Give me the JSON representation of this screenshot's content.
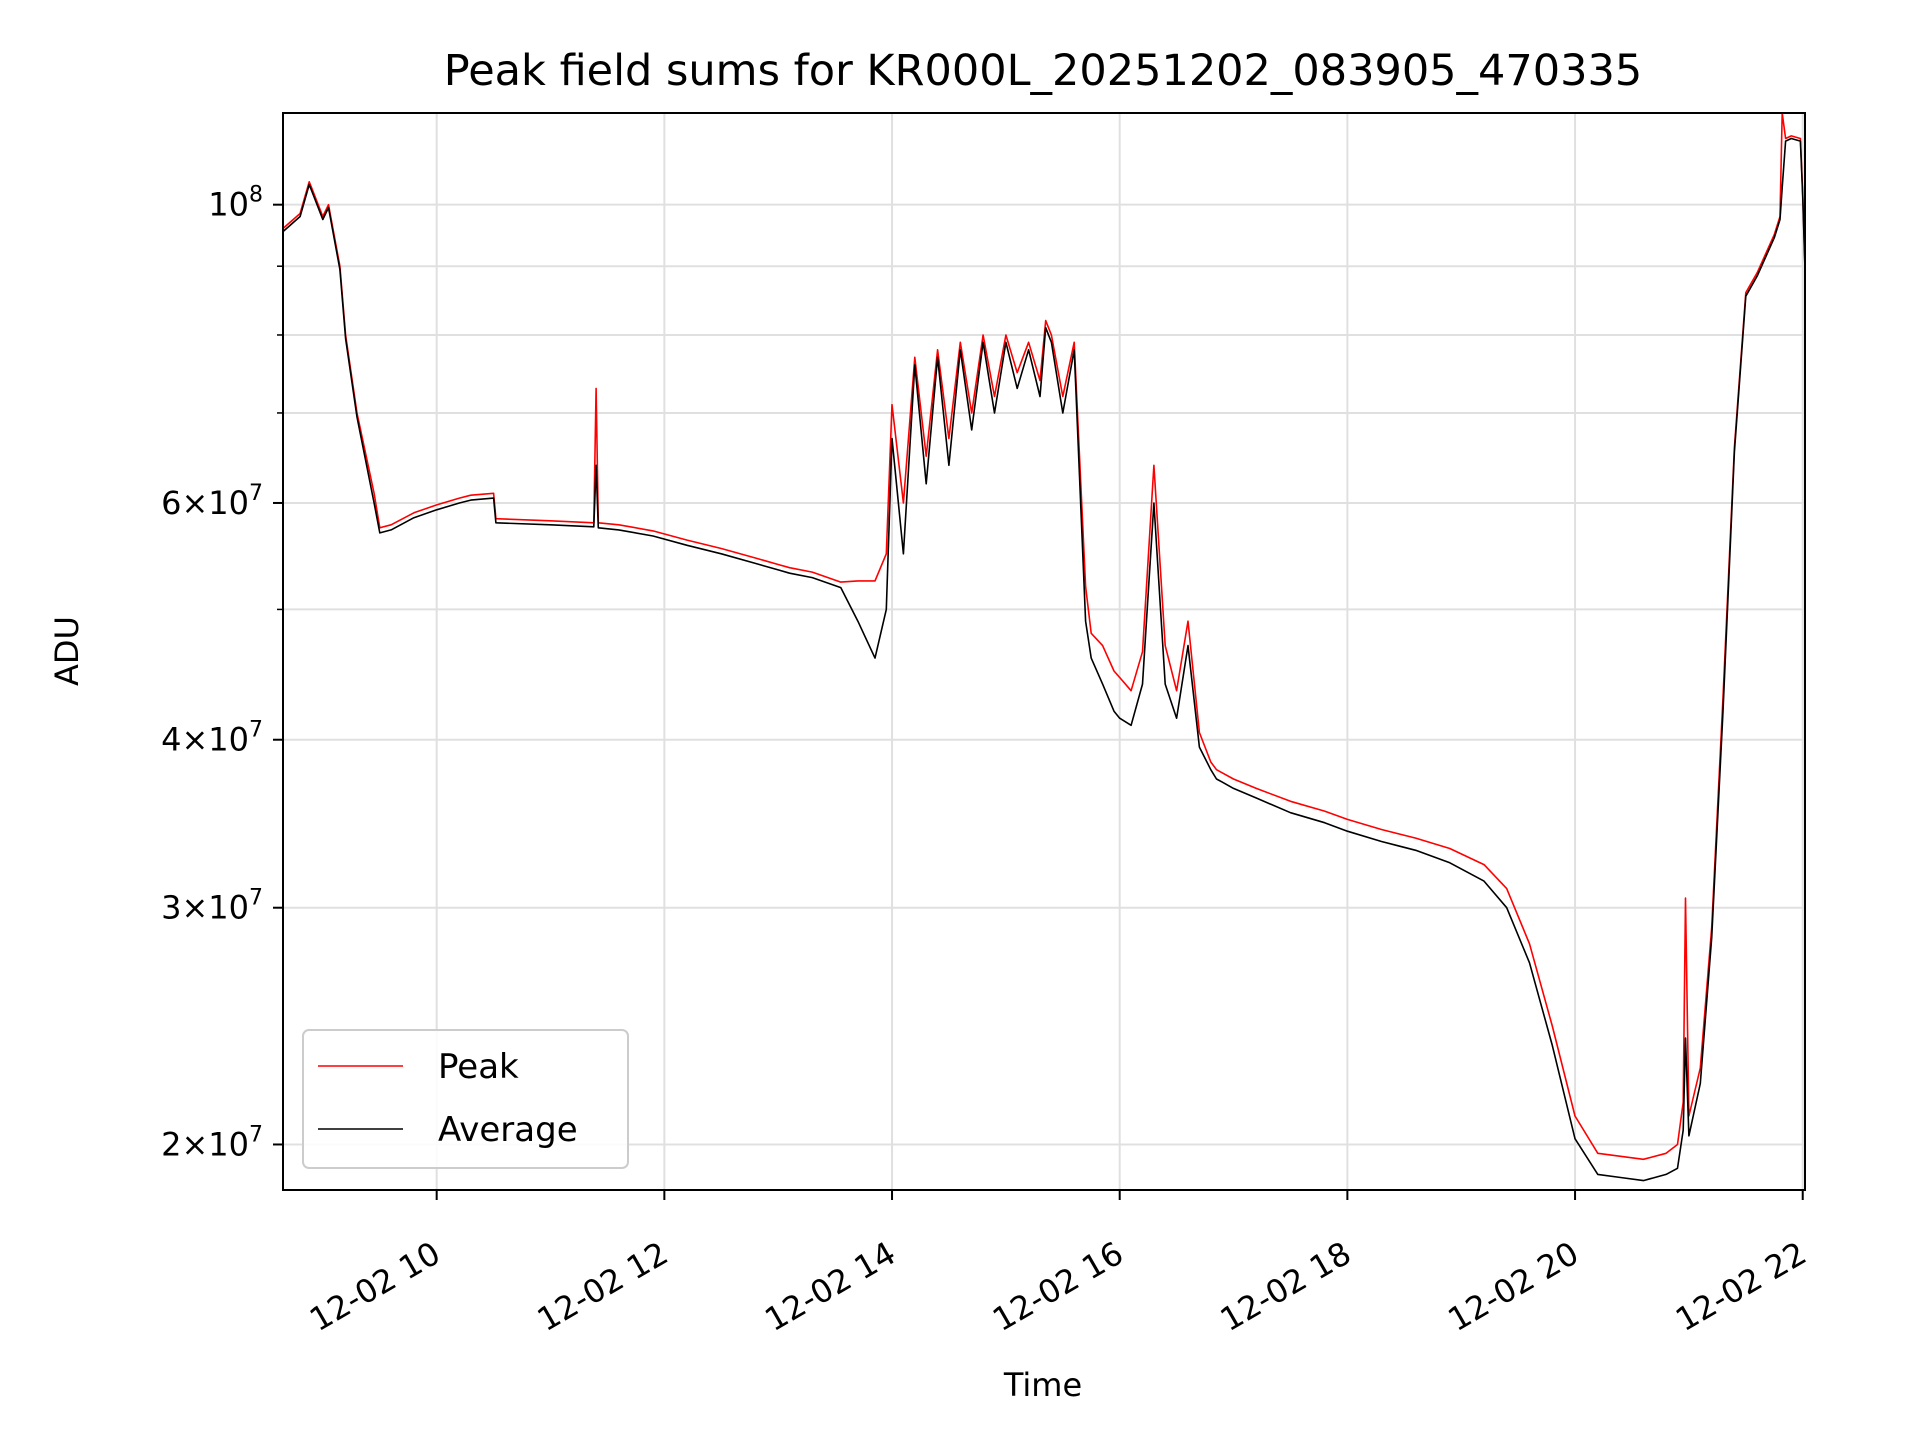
{
  "chart_data": {
    "type": "line",
    "title": "Peak field sums for KR000L_20251202_083905_470335",
    "xlabel": "Time",
    "ylabel": "ADU",
    "yscale": "log",
    "ylim": [
      18500000,
      117000000
    ],
    "xlim": [
      8.65,
      22.02
    ],
    "grid": true,
    "x_ticks": [
      {
        "value": 10,
        "label": "12-02 10"
      },
      {
        "value": 12,
        "label": "12-02 12"
      },
      {
        "value": 14,
        "label": "12-02 14"
      },
      {
        "value": 16,
        "label": "12-02 16"
      },
      {
        "value": 18,
        "label": "12-02 18"
      },
      {
        "value": 20,
        "label": "12-02 20"
      },
      {
        "value": 22,
        "label": "12-02 22"
      }
    ],
    "y_ticks": [
      {
        "value": 100000000,
        "base": "10",
        "exp": "8"
      },
      {
        "value": 60000000,
        "mant": "6",
        "base": "10",
        "exp": "7"
      },
      {
        "value": 40000000,
        "mant": "4",
        "base": "10",
        "exp": "7"
      },
      {
        "value": 30000000,
        "mant": "3",
        "base": "10",
        "exp": "7"
      },
      {
        "value": 20000000,
        "mant": "2",
        "base": "10",
        "exp": "7"
      }
    ],
    "y_minor_ticks": [
      50000000,
      70000000,
      80000000,
      90000000
    ],
    "legend": {
      "placement": "lower-left",
      "entries": [
        "Peak",
        "Average"
      ]
    },
    "series": [
      {
        "name": "Peak",
        "color": "#ff0000",
        "x": [
          8.65,
          8.8,
          8.88,
          8.9,
          9.0,
          9.05,
          9.15,
          9.2,
          9.3,
          9.45,
          9.5,
          9.6,
          9.8,
          10.0,
          10.2,
          10.3,
          10.5,
          10.52,
          11.0,
          11.38,
          11.4,
          11.42,
          11.6,
          11.9,
          12.2,
          12.5,
          12.8,
          13.0,
          13.1,
          13.3,
          13.55,
          13.7,
          13.85,
          13.95,
          14.0,
          14.1,
          14.2,
          14.3,
          14.4,
          14.5,
          14.6,
          14.7,
          14.8,
          14.9,
          15.0,
          15.1,
          15.2,
          15.3,
          15.35,
          15.4,
          15.5,
          15.6,
          15.7,
          15.75,
          15.85,
          15.95,
          16.0,
          16.1,
          16.2,
          16.3,
          16.4,
          16.5,
          16.6,
          16.7,
          16.8,
          16.85,
          16.9,
          17.0,
          17.2,
          17.5,
          17.8,
          18.0,
          18.3,
          18.6,
          18.9,
          19.2,
          19.4,
          19.6,
          19.8,
          20.0,
          20.2,
          20.4,
          20.6,
          20.8,
          20.9,
          20.95,
          20.97,
          21.0,
          21.1,
          21.2,
          21.3,
          21.4,
          21.5,
          21.6,
          21.75,
          21.8,
          21.82,
          21.85,
          21.9,
          21.98,
          22.0,
          22.02
        ],
        "y": [
          96000000,
          98500000,
          104000000,
          103000000,
          98000000,
          100000000,
          90000000,
          80000000,
          70000000,
          61000000,
          57500000,
          57800000,
          59000000,
          59800000,
          60500000,
          60800000,
          61000000,
          58400000,
          58200000,
          58000000,
          73000000,
          58000000,
          57800000,
          57200000,
          56300000,
          55500000,
          54600000,
          54000000,
          53700000,
          53300000,
          52400000,
          52500000,
          52500000,
          55000000,
          71000000,
          60000000,
          77000000,
          65000000,
          78000000,
          67000000,
          79000000,
          70000000,
          80000000,
          72000000,
          80000000,
          75000000,
          79000000,
          74000000,
          82000000,
          80000000,
          72000000,
          79000000,
          52000000,
          48000000,
          47000000,
          45000000,
          44500000,
          43500000,
          46500000,
          64000000,
          47000000,
          43500000,
          49000000,
          40500000,
          38500000,
          38000000,
          37800000,
          37400000,
          36800000,
          36000000,
          35400000,
          34900000,
          34300000,
          33800000,
          33200000,
          32300000,
          31000000,
          28200000,
          24500000,
          21000000,
          19700000,
          19600000,
          19500000,
          19700000,
          20000000,
          21500000,
          30500000,
          21000000,
          22800000,
          29000000,
          43000000,
          66000000,
          86000000,
          89000000,
          95000000,
          98000000,
          117000000,
          112000000,
          112500000,
          112000000,
          102000000,
          90000000
        ]
      },
      {
        "name": "Average",
        "color": "#000000",
        "x": [
          8.65,
          8.8,
          8.88,
          8.9,
          9.0,
          9.05,
          9.15,
          9.2,
          9.3,
          9.45,
          9.5,
          9.6,
          9.8,
          10.0,
          10.2,
          10.3,
          10.5,
          10.52,
          11.0,
          11.38,
          11.4,
          11.42,
          11.6,
          11.9,
          12.2,
          12.5,
          12.8,
          13.0,
          13.1,
          13.3,
          13.55,
          13.7,
          13.85,
          13.95,
          14.0,
          14.1,
          14.2,
          14.3,
          14.4,
          14.5,
          14.6,
          14.7,
          14.8,
          14.9,
          15.0,
          15.1,
          15.2,
          15.3,
          15.35,
          15.4,
          15.5,
          15.6,
          15.7,
          15.75,
          15.85,
          15.95,
          16.0,
          16.1,
          16.2,
          16.3,
          16.4,
          16.5,
          16.6,
          16.7,
          16.8,
          16.85,
          16.9,
          17.0,
          17.2,
          17.5,
          17.8,
          18.0,
          18.3,
          18.6,
          18.9,
          19.2,
          19.4,
          19.6,
          19.8,
          20.0,
          20.2,
          20.4,
          20.6,
          20.8,
          20.9,
          20.95,
          20.97,
          21.0,
          21.1,
          21.2,
          21.3,
          21.4,
          21.5,
          21.6,
          21.75,
          21.8,
          21.82,
          21.85,
          21.9,
          21.98,
          22.0,
          22.02
        ],
        "y": [
          95500000,
          98000000,
          103500000,
          102500000,
          97500000,
          99500000,
          89500000,
          79500000,
          69500000,
          60000000,
          57000000,
          57300000,
          58500000,
          59300000,
          60000000,
          60300000,
          60500000,
          58000000,
          57800000,
          57600000,
          64000000,
          57500000,
          57300000,
          56700000,
          55800000,
          55000000,
          54100000,
          53500000,
          53200000,
          52800000,
          51900000,
          49000000,
          46000000,
          50000000,
          67000000,
          55000000,
          76000000,
          62000000,
          77000000,
          64000000,
          78000000,
          68000000,
          79000000,
          70000000,
          79000000,
          73000000,
          78000000,
          72000000,
          81000000,
          79000000,
          70000000,
          78000000,
          49000000,
          46000000,
          44000000,
          42000000,
          41500000,
          41000000,
          44000000,
          60000000,
          44000000,
          41500000,
          47000000,
          39500000,
          38000000,
          37400000,
          37200000,
          36800000,
          36200000,
          35300000,
          34700000,
          34200000,
          33600000,
          33100000,
          32400000,
          31400000,
          30000000,
          27300000,
          23700000,
          20200000,
          19000000,
          18900000,
          18800000,
          19000000,
          19200000,
          20500000,
          24000000,
          20300000,
          22200000,
          28500000,
          42000000,
          65500000,
          85500000,
          88500000,
          94500000,
          97500000,
          103000000,
          111500000,
          112000000,
          111500000,
          101500000,
          89500000
        ]
      }
    ]
  }
}
